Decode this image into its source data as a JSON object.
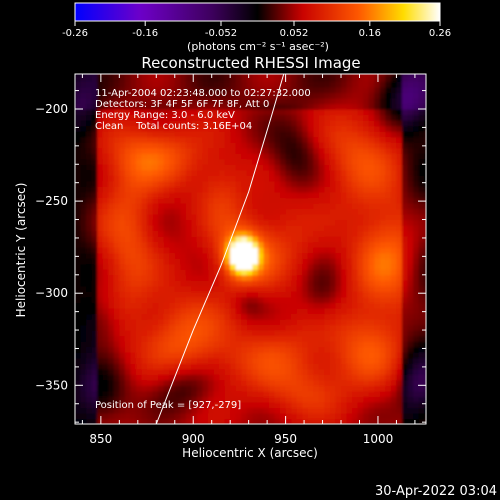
{
  "chart_data": {
    "type": "heatmap",
    "title": "Reconstructed RHESSI Image",
    "xlabel": "Heliocentric X (arcsec)",
    "ylabel": "Heliocentric Y (arcsec)",
    "xlim": [
      836,
      1026
    ],
    "ylim": [
      -371,
      -181
    ],
    "x_ticks": [
      850,
      900,
      950,
      1000
    ],
    "y_ticks": [
      -350,
      -300,
      -250,
      -200
    ],
    "colorbar": {
      "min": -0.26,
      "max": 0.26,
      "tick_labels": [
        "-0.26",
        "-0.16",
        "-0.052",
        "0.052",
        "0.16",
        "0.26"
      ],
      "tick_values": [
        -0.26,
        -0.16,
        -0.052,
        0.052,
        0.16,
        0.26
      ],
      "units": "(photons cm⁻² s⁻¹ asec⁻²)"
    },
    "info_lines": [
      "11-Apr-2004 02:23:48.000 to 02:27:32.000",
      "Detectors: 3F 4F 5F 6F 7F 8F, Att 0",
      "Energy Range: 3.0 - 6.0 keV",
      "Clean    Total counts: 3.16E+04"
    ],
    "peak_label": "Position of Peak = [927,-279]",
    "peak": {
      "x": 927,
      "y": -279,
      "value": 0.26
    },
    "blobs": [
      {
        "x": 927,
        "y": -279,
        "amp": 0.26,
        "sx": 5,
        "sy": 6
      },
      {
        "x": 927,
        "y": -279,
        "amp": 0.11,
        "sx": 11,
        "sy": 13
      },
      {
        "x": 880,
        "y": -225,
        "amp": 0.08,
        "sx": 18,
        "sy": 12
      },
      {
        "x": 865,
        "y": -270,
        "amp": 0.07,
        "sx": 11,
        "sy": 30
      },
      {
        "x": 895,
        "y": -325,
        "amp": 0.08,
        "sx": 16,
        "sy": 18
      },
      {
        "x": 915,
        "y": -245,
        "amp": 0.05,
        "sx": 10,
        "sy": 14
      },
      {
        "x": 990,
        "y": -225,
        "amp": 0.07,
        "sx": 16,
        "sy": 18
      },
      {
        "x": 1005,
        "y": -280,
        "amp": 0.09,
        "sx": 14,
        "sy": 22
      },
      {
        "x": 995,
        "y": -330,
        "amp": 0.07,
        "sx": 14,
        "sy": 16
      },
      {
        "x": 950,
        "y": -270,
        "amp": 0.04,
        "sx": 12,
        "sy": 20
      },
      {
        "x": 945,
        "y": -335,
        "amp": 0.06,
        "sx": 22,
        "sy": 14
      },
      {
        "x": 960,
        "y": -355,
        "amp": 0.04,
        "sx": 16,
        "sy": 10
      },
      {
        "x": 955,
        "y": -225,
        "amp": -0.05,
        "sx": 10,
        "sy": 14
      },
      {
        "x": 895,
        "y": -350,
        "amp": -0.06,
        "sx": 12,
        "sy": 10
      },
      {
        "x": 1015,
        "y": -195,
        "amp": -0.08,
        "sx": 10,
        "sy": 12
      },
      {
        "x": 850,
        "y": -355,
        "amp": -0.06,
        "sx": 10,
        "sy": 12
      },
      {
        "x": 850,
        "y": -315,
        "amp": -0.04,
        "sx": 8,
        "sy": 10
      },
      {
        "x": 1022,
        "y": -350,
        "amp": -0.06,
        "sx": 8,
        "sy": 12
      },
      {
        "x": 840,
        "y": -200,
        "amp": -0.04,
        "sx": 8,
        "sy": 10
      },
      {
        "x": 930,
        "y": -305,
        "amp": -0.03,
        "sx": 6,
        "sy": 6
      },
      {
        "x": 970,
        "y": -300,
        "amp": -0.03,
        "sx": 8,
        "sy": 10
      }
    ],
    "limb_line": [
      [
        880,
        -371
      ],
      [
        900,
        -320
      ],
      [
        915,
        -285
      ],
      [
        930,
        -245
      ],
      [
        942,
        -205
      ],
      [
        949,
        -181
      ]
    ],
    "timestamp": "30-Apr-2022 03:04"
  }
}
